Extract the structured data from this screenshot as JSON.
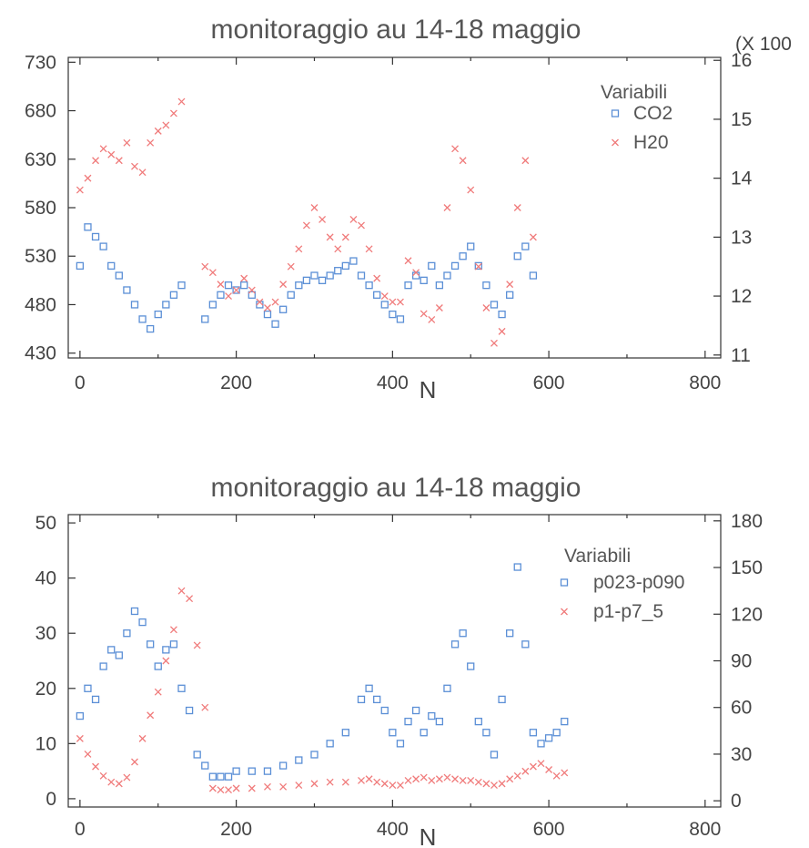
{
  "chart_data": [
    {
      "type": "scatter",
      "title": "monitoraggio au 14-18 maggio",
      "xlabel": "N",
      "xlim": [
        -15,
        820
      ],
      "xticks": [
        "0",
        "200",
        "400",
        "600",
        "800"
      ],
      "xtick_values": [
        0,
        200,
        400,
        600,
        800
      ],
      "left_axis": {
        "ylim": [
          425,
          735
        ],
        "ticks": [
          "430",
          "480",
          "530",
          "580",
          "630",
          "680",
          "730"
        ],
        "tick_values": [
          430,
          480,
          530,
          580,
          630,
          680,
          730
        ]
      },
      "right_axis": {
        "label": "(X 100",
        "ylim": [
          10.95,
          16.05
        ],
        "ticks": [
          "11",
          "12",
          "13",
          "14",
          "15",
          "16"
        ],
        "tick_values": [
          11,
          12,
          13,
          14,
          15,
          16
        ]
      },
      "legend": {
        "title": "Variabili",
        "position": "top-right"
      },
      "grid": false,
      "series": [
        {
          "name": "CO2",
          "axis": "left",
          "marker": "square",
          "color": "#5b8fd6",
          "x": [
            0,
            10,
            20,
            30,
            40,
            50,
            60,
            70,
            80,
            90,
            100,
            110,
            120,
            130,
            160,
            170,
            180,
            190,
            200,
            210,
            220,
            230,
            240,
            250,
            260,
            270,
            280,
            290,
            300,
            310,
            320,
            330,
            340,
            350,
            360,
            370,
            380,
            390,
            400,
            410,
            420,
            430,
            440,
            450,
            460,
            470,
            480,
            490,
            500,
            510,
            520,
            530,
            540,
            550,
            560,
            570,
            580
          ],
          "y": [
            520,
            560,
            550,
            540,
            520,
            510,
            495,
            480,
            465,
            455,
            470,
            480,
            490,
            500,
            465,
            480,
            490,
            500,
            495,
            500,
            490,
            480,
            470,
            460,
            475,
            490,
            500,
            505,
            510,
            505,
            510,
            515,
            520,
            525,
            510,
            500,
            490,
            480,
            470,
            465,
            500,
            510,
            505,
            520,
            500,
            510,
            520,
            530,
            540,
            520,
            500,
            480,
            470,
            490,
            530,
            540,
            510
          ]
        },
        {
          "name": "H20",
          "axis": "right",
          "marker": "x",
          "color": "#f07b7b",
          "x": [
            0,
            10,
            20,
            30,
            40,
            50,
            60,
            70,
            80,
            90,
            100,
            110,
            120,
            130,
            160,
            170,
            180,
            190,
            200,
            210,
            220,
            230,
            240,
            250,
            260,
            270,
            280,
            290,
            300,
            310,
            320,
            330,
            340,
            350,
            360,
            370,
            380,
            390,
            400,
            410,
            420,
            430,
            440,
            450,
            460,
            470,
            480,
            490,
            500,
            510,
            520,
            530,
            540,
            550,
            560,
            570,
            580
          ],
          "y": [
            13.8,
            14.0,
            14.3,
            14.5,
            14.4,
            14.3,
            14.6,
            14.2,
            14.1,
            14.6,
            14.8,
            14.9,
            15.1,
            15.3,
            12.5,
            12.4,
            12.2,
            12.0,
            12.1,
            12.3,
            12.1,
            11.9,
            11.8,
            11.9,
            12.2,
            12.5,
            12.8,
            13.2,
            13.5,
            13.3,
            13.0,
            12.8,
            13.0,
            13.3,
            13.2,
            12.8,
            12.3,
            12.0,
            11.9,
            11.9,
            12.6,
            12.4,
            11.7,
            11.6,
            11.8,
            13.5,
            14.5,
            14.3,
            13.8,
            12.5,
            11.8,
            11.2,
            11.4,
            12.2,
            13.5,
            14.3,
            13.0
          ]
        }
      ]
    },
    {
      "type": "scatter",
      "title": "monitoraggio au 14-18 maggio",
      "xlabel": "N",
      "xlim": [
        -15,
        820
      ],
      "xticks": [
        "0",
        "200",
        "400",
        "600",
        "800"
      ],
      "xtick_values": [
        0,
        200,
        400,
        600,
        800
      ],
      "left_axis": {
        "ylim": [
          -1.5,
          51.5
        ],
        "ticks": [
          "0",
          "10",
          "20",
          "30",
          "40",
          "50"
        ],
        "tick_values": [
          0,
          10,
          20,
          30,
          40,
          50
        ]
      },
      "right_axis": {
        "ylim": [
          -4,
          184
        ],
        "ticks": [
          "0",
          "30",
          "60",
          "90",
          "120",
          "150",
          "180"
        ],
        "tick_values": [
          0,
          30,
          60,
          90,
          120,
          150,
          180
        ]
      },
      "legend": {
        "title": "Variabili",
        "position": "top-right"
      },
      "grid": false,
      "series": [
        {
          "name": "p023-p090",
          "axis": "left",
          "marker": "square",
          "color": "#5b8fd6",
          "x": [
            0,
            10,
            20,
            30,
            40,
            50,
            60,
            70,
            80,
            90,
            100,
            110,
            120,
            130,
            140,
            150,
            160,
            170,
            180,
            190,
            200,
            220,
            240,
            260,
            280,
            300,
            320,
            340,
            360,
            370,
            380,
            390,
            400,
            410,
            420,
            430,
            440,
            450,
            460,
            470,
            480,
            490,
            500,
            510,
            520,
            530,
            540,
            550,
            560,
            570,
            580,
            590,
            600,
            610,
            620
          ],
          "y": [
            15,
            20,
            18,
            24,
            27,
            26,
            30,
            34,
            32,
            28,
            24,
            27,
            28,
            20,
            16,
            8,
            6,
            4,
            4,
            4,
            5,
            5,
            5,
            6,
            7,
            8,
            10,
            12,
            18,
            20,
            18,
            16,
            12,
            10,
            14,
            16,
            12,
            15,
            14,
            20,
            28,
            30,
            24,
            14,
            12,
            8,
            18,
            30,
            42,
            28,
            12,
            10,
            11,
            12,
            14
          ]
        },
        {
          "name": "p1-p7_5",
          "axis": "right",
          "marker": "x",
          "color": "#f07b7b",
          "x": [
            0,
            10,
            20,
            30,
            40,
            50,
            60,
            70,
            80,
            90,
            100,
            110,
            120,
            130,
            140,
            150,
            160,
            170,
            180,
            190,
            200,
            220,
            240,
            260,
            280,
            300,
            320,
            340,
            360,
            370,
            380,
            390,
            400,
            410,
            420,
            430,
            440,
            450,
            460,
            470,
            480,
            490,
            500,
            510,
            520,
            530,
            540,
            550,
            560,
            570,
            580,
            590,
            600,
            610,
            620
          ],
          "y": [
            40,
            30,
            22,
            16,
            12,
            11,
            15,
            25,
            40,
            55,
            70,
            90,
            110,
            135,
            130,
            100,
            60,
            8,
            7,
            7,
            8,
            8,
            9,
            9,
            10,
            11,
            12,
            12,
            13,
            14,
            12,
            11,
            10,
            10,
            13,
            14,
            15,
            13,
            14,
            15,
            14,
            13,
            13,
            12,
            11,
            10,
            11,
            14,
            16,
            19,
            22,
            24,
            20,
            16,
            18
          ]
        }
      ]
    }
  ]
}
